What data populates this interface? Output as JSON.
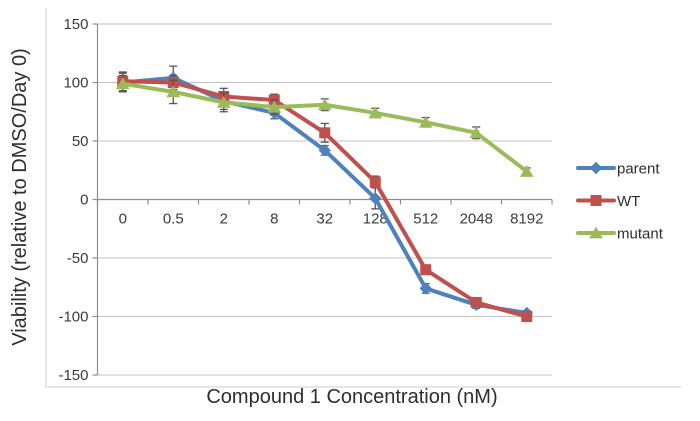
{
  "chart_data": {
    "type": "line",
    "title": "",
    "xlabel": "Compound 1 Concentration (nM)",
    "ylabel": "Viability (relative to DMSO/Day 0)",
    "categories": [
      "0",
      "0.5",
      "2",
      "8",
      "32",
      "128",
      "512",
      "2048",
      "8192"
    ],
    "ylim": [
      -150,
      150
    ],
    "ytick_step": 50,
    "ytick_labels": [
      "150",
      "100",
      "50",
      "0",
      "-50",
      "-100",
      "-150"
    ],
    "grid": true,
    "legend_position": "right",
    "series": [
      {
        "name": "parent",
        "marker": "diamond",
        "color": "#4F81BD",
        "values": [
          100,
          104,
          84,
          74,
          42,
          1,
          -76,
          -90,
          -97
        ],
        "errors": [
          8,
          10,
          7,
          5,
          4,
          9,
          4,
          3,
          2
        ]
      },
      {
        "name": "WT",
        "marker": "square",
        "color": "#C0504D",
        "values": [
          101,
          100,
          88,
          85,
          57,
          15,
          -60,
          -88,
          -100
        ],
        "errors": [
          8,
          6,
          7,
          5,
          8,
          5,
          4,
          3,
          2
        ]
      },
      {
        "name": "mutant",
        "marker": "triangle",
        "color": "#9BBB59",
        "values": [
          99,
          92,
          83,
          79,
          81,
          74,
          66,
          57,
          24
        ],
        "errors": [
          7,
          10,
          8,
          6,
          5,
          4,
          4,
          5,
          3
        ]
      }
    ]
  },
  "colors": {
    "gridline": "#C3C3C3",
    "axis": "#8E8E8E",
    "error_bar": "#555555",
    "frame": "#DEDEDE"
  }
}
